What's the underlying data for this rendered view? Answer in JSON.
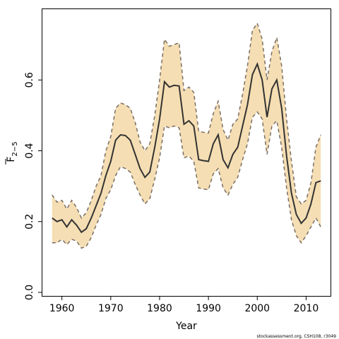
{
  "chart_data": {
    "type": "area",
    "xlabel": "Year",
    "ylabel_main": "F",
    "ylabel_sub": "2−5",
    "credit": "stockassessment.org, CSH108, r3049",
    "xlim": [
      1956,
      2015
    ],
    "ylim": [
      -0.01,
      0.8
    ],
    "xticks": [
      1960,
      1970,
      1980,
      1990,
      2000,
      2010
    ],
    "yticks": [
      0.0,
      0.2,
      0.4,
      0.6
    ],
    "ytick_labels": [
      "0.0",
      "0.2",
      "0.4",
      "0.6"
    ],
    "colors": {
      "band": "#f5deb3",
      "bound_line": "#7a6e65",
      "estimate_line": "#333333"
    },
    "series": [
      {
        "role": "estimate",
        "x": [
          1958,
          1959,
          1960,
          1961,
          1962,
          1963,
          1964,
          1965,
          1966,
          1967,
          1968,
          1969,
          1970,
          1971,
          1972,
          1973,
          1974,
          1975,
          1976,
          1977,
          1978,
          1979,
          1980,
          1981,
          1982,
          1983,
          1984,
          1985,
          1986,
          1987,
          1988,
          1989,
          1990,
          1991,
          1992,
          1993,
          1994,
          1995,
          1996,
          1997,
          1998,
          1999,
          2000,
          2001,
          2002,
          2003,
          2004,
          2005,
          2006,
          2007,
          2008,
          2009,
          2010,
          2011,
          2012,
          2013
        ],
        "y": [
          0.21,
          0.2,
          0.205,
          0.185,
          0.205,
          0.19,
          0.17,
          0.18,
          0.21,
          0.245,
          0.28,
          0.33,
          0.37,
          0.43,
          0.445,
          0.443,
          0.43,
          0.39,
          0.35,
          0.325,
          0.34,
          0.41,
          0.49,
          0.595,
          0.58,
          0.585,
          0.583,
          0.475,
          0.485,
          0.47,
          0.375,
          0.372,
          0.37,
          0.42,
          0.445,
          0.375,
          0.352,
          0.39,
          0.41,
          0.47,
          0.53,
          0.615,
          0.645,
          0.6,
          0.495,
          0.575,
          0.6,
          0.52,
          0.385,
          0.28,
          0.22,
          0.195,
          0.21,
          0.25,
          0.31,
          0.315
        ]
      },
      {
        "role": "upper",
        "x": [
          1958,
          1959,
          1960,
          1961,
          1962,
          1963,
          1964,
          1965,
          1966,
          1967,
          1968,
          1969,
          1970,
          1971,
          1972,
          1973,
          1974,
          1975,
          1976,
          1977,
          1978,
          1979,
          1980,
          1981,
          1982,
          1983,
          1984,
          1985,
          1986,
          1987,
          1988,
          1989,
          1990,
          1991,
          1992,
          1993,
          1994,
          1995,
          1996,
          1997,
          1998,
          1999,
          2000,
          2001,
          2002,
          2003,
          2004,
          2005,
          2006,
          2007,
          2008,
          2009,
          2010,
          2011,
          2012,
          2013
        ],
        "y": [
          0.275,
          0.255,
          0.26,
          0.235,
          0.26,
          0.24,
          0.21,
          0.225,
          0.26,
          0.3,
          0.33,
          0.4,
          0.44,
          0.52,
          0.535,
          0.53,
          0.52,
          0.48,
          0.425,
          0.4,
          0.42,
          0.5,
          0.6,
          0.715,
          0.695,
          0.7,
          0.705,
          0.57,
          0.58,
          0.565,
          0.455,
          0.452,
          0.45,
          0.505,
          0.54,
          0.46,
          0.43,
          0.475,
          0.49,
          0.56,
          0.64,
          0.74,
          0.76,
          0.715,
          0.6,
          0.68,
          0.72,
          0.64,
          0.49,
          0.37,
          0.27,
          0.25,
          0.26,
          0.31,
          0.41,
          0.445
        ]
      },
      {
        "role": "lower",
        "x": [
          1958,
          1959,
          1960,
          1961,
          1962,
          1963,
          1964,
          1965,
          1966,
          1967,
          1968,
          1969,
          1970,
          1971,
          1972,
          1973,
          1974,
          1975,
          1976,
          1977,
          1978,
          1979,
          1980,
          1981,
          1982,
          1983,
          1984,
          1985,
          1986,
          1987,
          1988,
          1989,
          1990,
          1991,
          1992,
          1993,
          1994,
          1995,
          1996,
          1997,
          1998,
          1999,
          2000,
          2001,
          2002,
          2003,
          2004,
          2005,
          2006,
          2007,
          2008,
          2009,
          2010,
          2011,
          2012,
          2013
        ],
        "y": [
          0.14,
          0.14,
          0.15,
          0.135,
          0.15,
          0.145,
          0.125,
          0.13,
          0.155,
          0.19,
          0.22,
          0.265,
          0.29,
          0.33,
          0.355,
          0.35,
          0.34,
          0.305,
          0.275,
          0.25,
          0.265,
          0.32,
          0.38,
          0.47,
          0.465,
          0.47,
          0.465,
          0.38,
          0.385,
          0.37,
          0.295,
          0.292,
          0.29,
          0.335,
          0.35,
          0.295,
          0.275,
          0.305,
          0.325,
          0.375,
          0.42,
          0.495,
          0.51,
          0.49,
          0.39,
          0.47,
          0.485,
          0.41,
          0.295,
          0.205,
          0.16,
          0.14,
          0.16,
          0.185,
          0.21,
          0.185
        ]
      }
    ]
  }
}
